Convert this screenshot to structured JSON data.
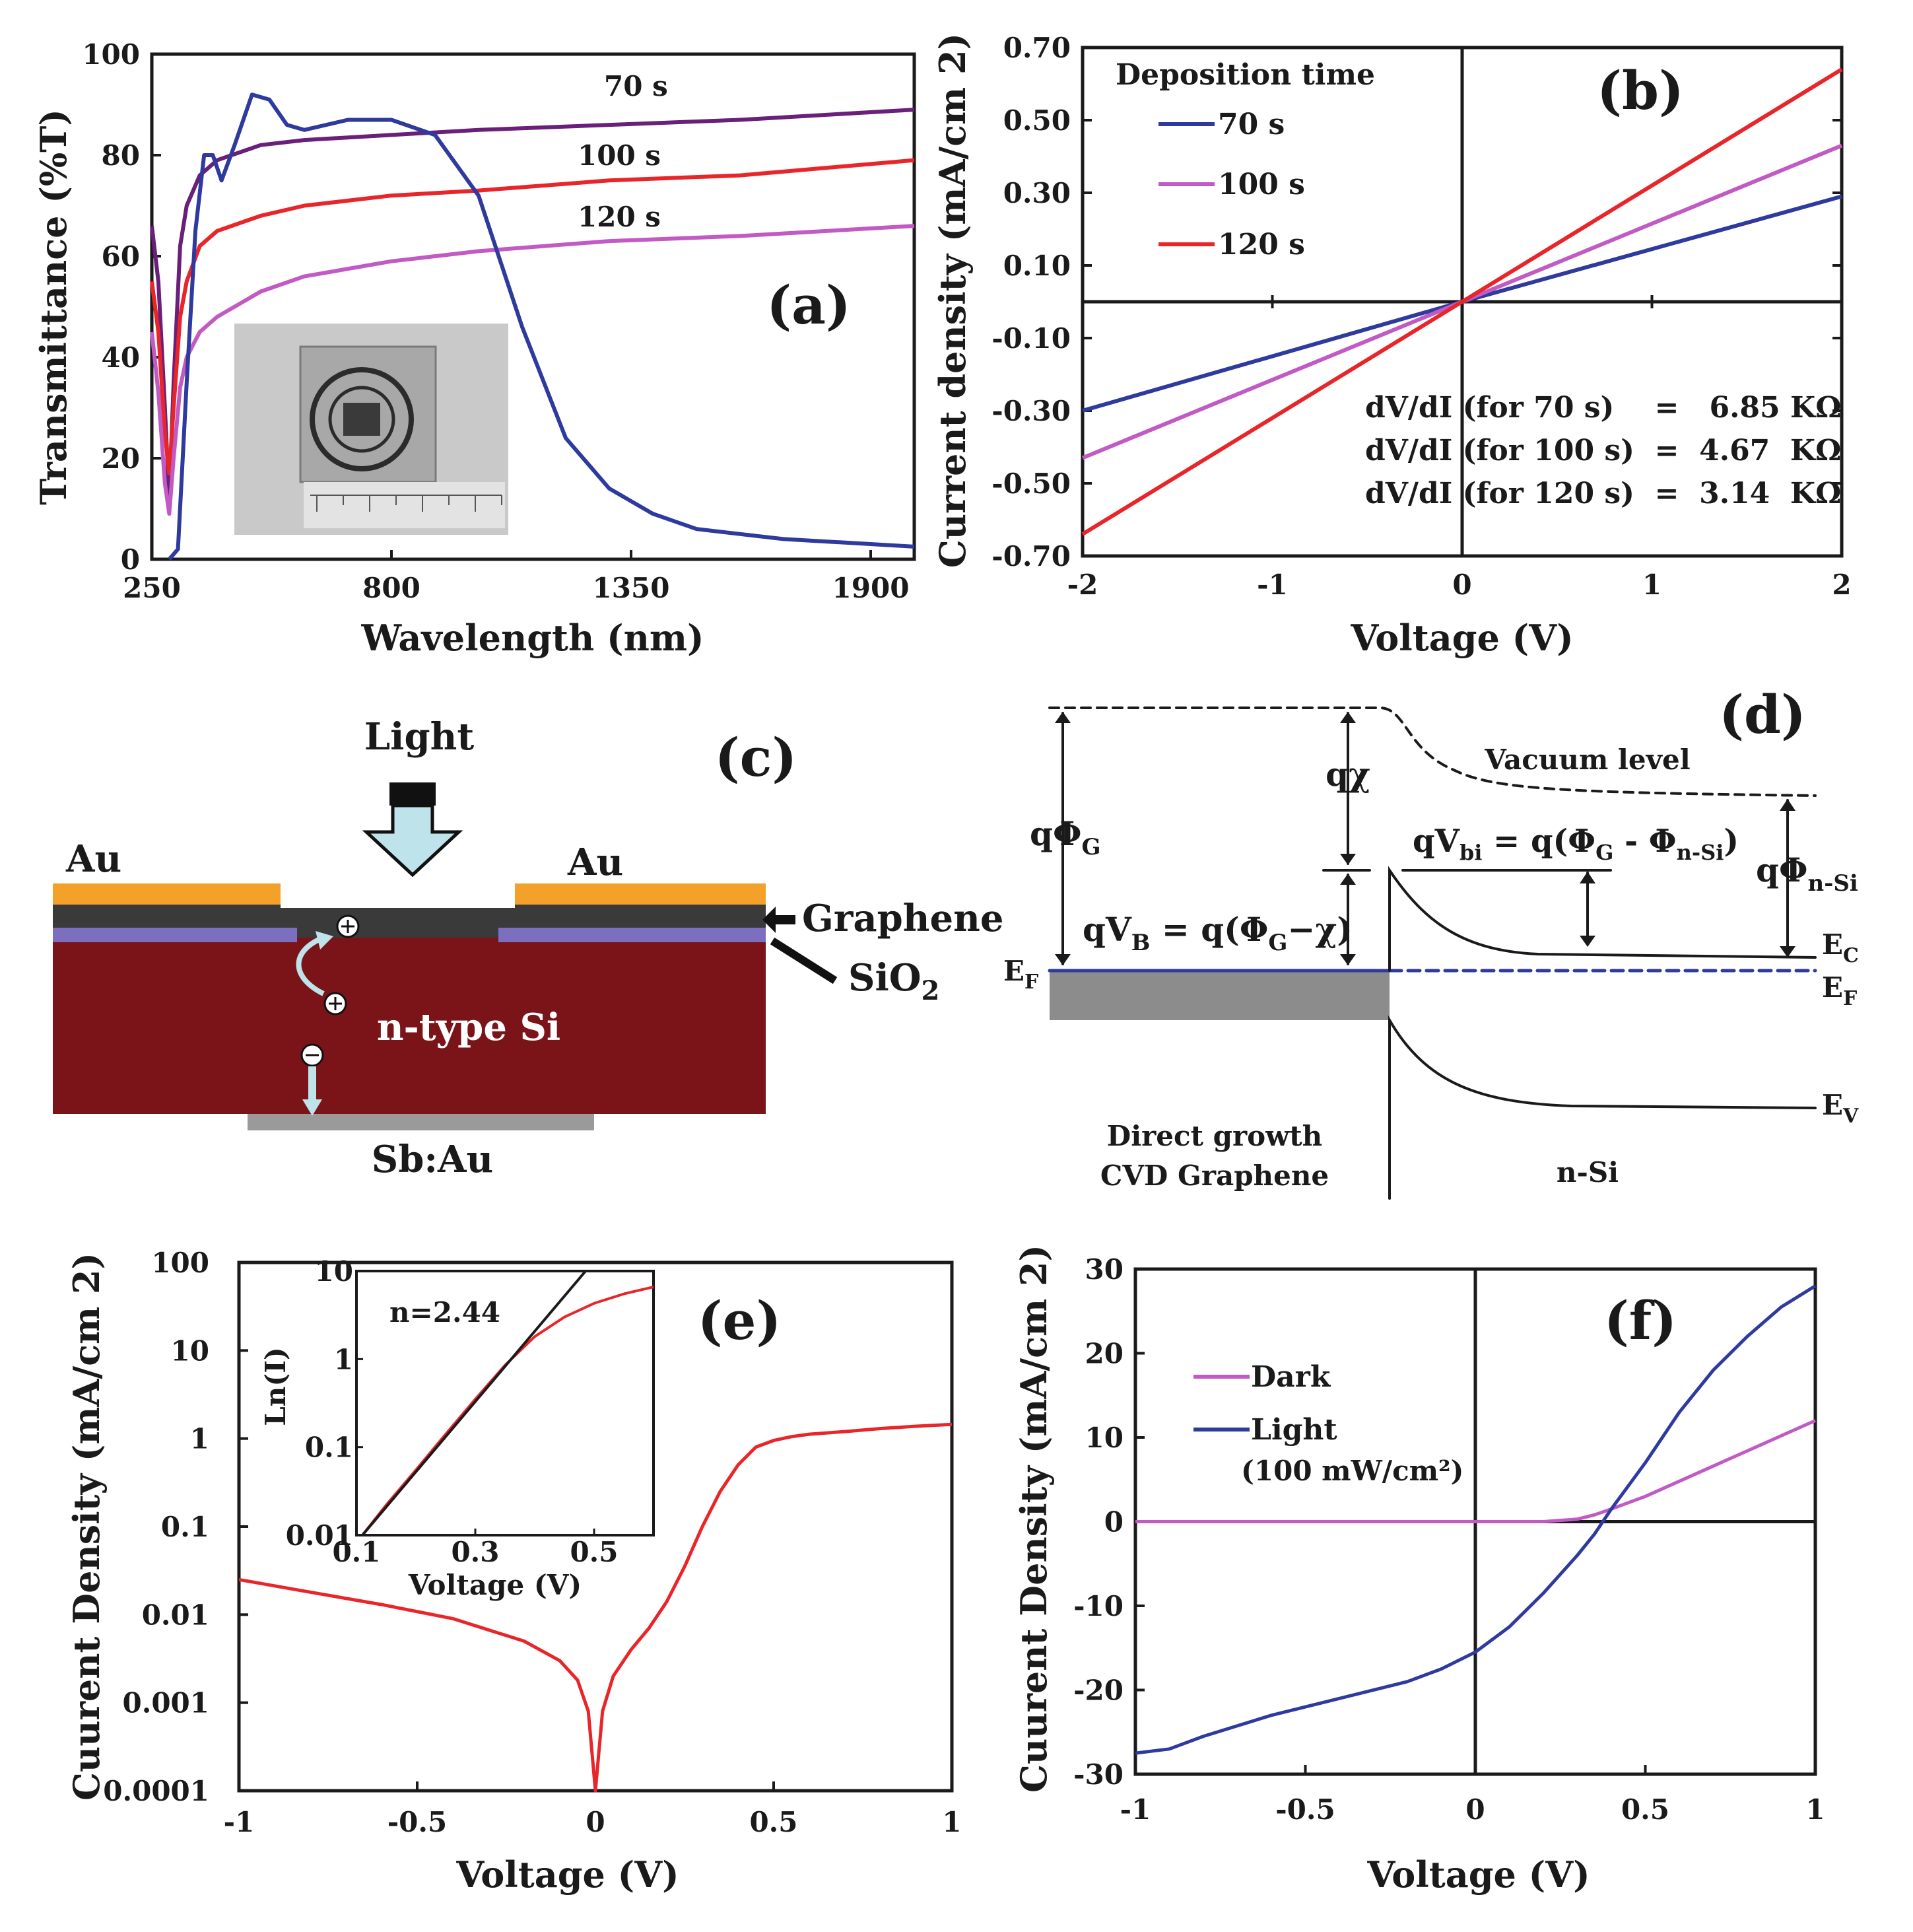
{
  "chart_data": [
    {
      "panel": "(a)",
      "type": "line",
      "xlabel": "Wavelength (nm)",
      "ylabel": "Transmittance (%T)",
      "xlim": [
        250,
        2000
      ],
      "ylim": [
        0,
        100
      ],
      "xticks": [
        250,
        800,
        1350,
        1900
      ],
      "yticks": [
        0,
        20,
        40,
        60,
        80,
        100
      ],
      "series": [
        {
          "name": "70 s",
          "color": "#6a1f7a",
          "x": [
            250,
            265,
            280,
            290,
            300,
            315,
            330,
            360,
            400,
            500,
            600,
            800,
            1000,
            1300,
            1600,
            2000
          ],
          "y": [
            66,
            55,
            30,
            12,
            35,
            62,
            70,
            76,
            79,
            82,
            83,
            84,
            85,
            86,
            87,
            89
          ]
        },
        {
          "name": "100 s",
          "color": "#e8262a",
          "x": [
            250,
            265,
            280,
            290,
            300,
            315,
            330,
            360,
            400,
            500,
            600,
            800,
            1000,
            1300,
            1600,
            2000
          ],
          "y": [
            55,
            45,
            25,
            17,
            30,
            48,
            55,
            62,
            65,
            68,
            70,
            72,
            73,
            75,
            76,
            79
          ]
        },
        {
          "name": "120 s",
          "color": "#c25ac4",
          "x": [
            250,
            265,
            280,
            290,
            300,
            315,
            330,
            360,
            400,
            500,
            600,
            800,
            1000,
            1300,
            1600,
            2000
          ],
          "y": [
            45,
            33,
            15,
            9,
            20,
            34,
            40,
            45,
            48,
            53,
            56,
            59,
            61,
            63,
            64,
            66
          ]
        },
        {
          "name": "",
          "color": "#2f3a9e",
          "x": [
            290,
            310,
            330,
            350,
            370,
            390,
            410,
            440,
            480,
            520,
            560,
            600,
            700,
            800,
            900,
            1000,
            1100,
            1200,
            1300,
            1400,
            1500,
            1600,
            1700,
            1800,
            1900,
            2000
          ],
          "y": [
            0,
            2,
            35,
            65,
            80,
            80,
            75,
            82,
            92,
            91,
            86,
            85,
            87,
            87,
            84,
            72,
            46,
            24,
            14,
            9,
            6,
            5,
            4,
            3.5,
            3,
            2.5
          ]
        }
      ],
      "annotations": [
        "70 s",
        "100 s",
        "120 s"
      ]
    },
    {
      "panel": "(b)",
      "type": "line",
      "xlabel": "Voltage (V)",
      "ylabel": "Current density (mA/cm 2)",
      "xlim": [
        -2,
        2
      ],
      "ylim": [
        -0.7,
        0.7
      ],
      "xticks": [
        -2,
        -1,
        0,
        1,
        2
      ],
      "yticks": [
        0.7,
        0.5,
        0.3,
        0.1,
        -0.1,
        -0.3,
        -0.5,
        -0.7
      ],
      "xtick_labels": [
        "-2",
        "-1",
        "0",
        "1",
        "2"
      ],
      "ytick_labels": [
        "0.70",
        "0.50",
        "0.30",
        "0.10",
        "-0.10",
        "-0.30",
        "-0.50",
        "-0.70"
      ],
      "legend_title": "Deposition time",
      "series": [
        {
          "name": "70 s",
          "color": "#2f3a9e",
          "x": [
            -2,
            0,
            2
          ],
          "y": [
            -0.3,
            0,
            0.29
          ]
        },
        {
          "name": "100 s",
          "color": "#c25ac4",
          "x": [
            -2,
            0,
            2
          ],
          "y": [
            -0.43,
            0,
            0.43
          ]
        },
        {
          "name": "120 s",
          "color": "#e8262a",
          "x": [
            -2,
            0,
            2
          ],
          "y": [
            -0.64,
            0,
            0.64
          ]
        }
      ],
      "annotations": [
        "dV/dI (for 70 s)    =   6.85 KΩ",
        "dV/dI (for 100 s)  =  4.67  KΩ",
        "dV/dI (for 120 s)  =  3.14  KΩ"
      ]
    },
    {
      "panel": "(e)",
      "type": "line",
      "xlabel": "Voltage (V)",
      "ylabel": "Cuurent Density (mA/cm 2)",
      "xlim": [
        -1,
        1
      ],
      "ylim": [
        0.0001,
        100
      ],
      "yscale": "log",
      "xticks": [
        -1,
        -0.5,
        0,
        0.5,
        1
      ],
      "xtick_labels": [
        "-1",
        "-0.5",
        "0",
        "0.5",
        "1"
      ],
      "yticks": [
        100,
        10,
        1,
        0.1,
        0.01,
        0.001,
        0.0001
      ],
      "ytick_labels": [
        "100",
        "10",
        "1",
        "0.1",
        "0.01",
        "0.001",
        "0.0001"
      ],
      "series": [
        {
          "name": "",
          "color": "#e8262a",
          "x": [
            -1,
            -0.8,
            -0.6,
            -0.4,
            -0.2,
            -0.1,
            -0.05,
            -0.02,
            0,
            0.02,
            0.05,
            0.1,
            0.15,
            0.2,
            0.25,
            0.3,
            0.35,
            0.4,
            0.45,
            0.5,
            0.55,
            0.6,
            0.7,
            0.8,
            0.9,
            1.0
          ],
          "y": [
            0.025,
            0.018,
            0.013,
            0.009,
            0.005,
            0.003,
            0.0018,
            0.0008,
            0.0001,
            0.0008,
            0.002,
            0.004,
            0.007,
            0.014,
            0.035,
            0.1,
            0.25,
            0.5,
            0.8,
            0.95,
            1.05,
            1.12,
            1.2,
            1.3,
            1.38,
            1.45
          ]
        }
      ],
      "inset": {
        "type": "line",
        "xlabel": "Voltage (V)",
        "ylabel": "Ln(I)",
        "xlim": [
          0.1,
          0.6
        ],
        "ylim": [
          0.01,
          10
        ],
        "yscale": "log",
        "xticks": [
          0.1,
          0.3,
          0.5
        ],
        "xtick_labels": [
          "0.1",
          "0.3",
          "0.5"
        ],
        "yticks": [
          10,
          1,
          0.1,
          0.01
        ],
        "ytick_labels": [
          "10",
          "1",
          "0.1",
          "0.01"
        ],
        "annotation": "n=2.44",
        "series": [
          {
            "name": "",
            "color": "#e8262a",
            "x": [
              0.11,
              0.15,
              0.2,
              0.25,
              0.3,
              0.35,
              0.4,
              0.45,
              0.5,
              0.55,
              0.6
            ],
            "y": [
              0.01,
              0.022,
              0.055,
              0.14,
              0.35,
              0.85,
              1.8,
              3.0,
              4.3,
              5.5,
              6.6
            ]
          },
          {
            "name": "",
            "color": "#1a1a1a",
            "x": [
              0.11,
              0.5
            ],
            "y": [
              0.01,
              13
            ]
          }
        ]
      }
    },
    {
      "panel": "(f)",
      "type": "line",
      "xlabel": "Voltage (V)",
      "ylabel": "Cuurent Density (mA/cm 2)",
      "xlim": [
        -1,
        1
      ],
      "ylim": [
        -30,
        30
      ],
      "xticks": [
        -1,
        -0.5,
        0,
        0.5,
        1
      ],
      "xtick_labels": [
        "-1",
        "-0.5",
        "0",
        "0.5",
        "1"
      ],
      "yticks": [
        30,
        20,
        10,
        0,
        -10,
        -20,
        -30
      ],
      "ytick_labels": [
        "30",
        "20",
        "10",
        "0",
        "-10",
        "-20",
        "-30"
      ],
      "legend_note": "(100 mW/cm²)",
      "series": [
        {
          "name": "Dark",
          "color": "#c25ac4",
          "x": [
            -1,
            -0.5,
            0,
            0.2,
            0.3,
            0.35,
            0.4,
            0.5,
            0.6,
            0.7,
            0.8,
            0.9,
            1.0
          ],
          "y": [
            0,
            0,
            0,
            0,
            0.3,
            0.8,
            1.5,
            3.0,
            4.8,
            6.6,
            8.4,
            10.2,
            12.0
          ]
        },
        {
          "name": "Light",
          "color": "#2f3a9e",
          "x": [
            -1,
            -0.9,
            -0.8,
            -0.6,
            -0.4,
            -0.2,
            -0.1,
            0,
            0.1,
            0.2,
            0.3,
            0.35,
            0.4,
            0.5,
            0.6,
            0.7,
            0.8,
            0.9,
            1.0
          ],
          "y": [
            -27.5,
            -27,
            -25.5,
            -23,
            -21,
            -19,
            -17.5,
            -15.5,
            -12.5,
            -8.5,
            -4,
            -1.5,
            1.5,
            7,
            13,
            18,
            22,
            25.5,
            28
          ]
        }
      ]
    }
  ],
  "panel_c": {
    "label": "(c)",
    "light": "Light",
    "au_left": "Au",
    "au_right": "Au",
    "graphene": "Graphene",
    "sio2_main": "SiO",
    "sio2_sub": "2",
    "silicon": "n-type Si",
    "back_contact": "Sb:Au",
    "colors": {
      "au": "#f4a129",
      "graphene": "#3a3a3a",
      "sio2": "#7c6fc0",
      "silicon": "#7a1418",
      "contact": "#9a9a9a",
      "arrow": "#bfe3ea"
    }
  },
  "panel_d": {
    "label": "(d)",
    "vacuum_level": "Vacuum level",
    "q_phi_g": "qΦ",
    "q_phi_g_sub": "G",
    "q_chi": "qχ",
    "q_vbi": "qV",
    "q_vbi_sub": "bi",
    "q_vbi_eq": " = q(Φ",
    "q_vbi_eq_sub1": "G",
    "q_vbi_eq2": " - Φ",
    "q_vbi_eq_sub2": "n-Si",
    "q_vbi_eq3": ")",
    "q_vb": "qV",
    "q_vb_sub": "B",
    "q_vb_eq": " = q(Φ",
    "q_vb_eq_sub": "G",
    "q_vb_eq2": "−χ)",
    "q_phi_nsi": "qΦ",
    "q_phi_nsi_sub": "n-Si",
    "ef_left": "E",
    "ef_left_sub": "F",
    "ec": "E",
    "ec_sub": "C",
    "ef_right": "E",
    "ef_right_sub": "F",
    "ev": "E",
    "ev_sub": "V",
    "left_region_line1": "Direct growth",
    "left_region_line2": "CVD Graphene",
    "right_region": "n-Si"
  },
  "legend_b_title": "Deposition time",
  "legend_f_note": "(100 mW/cm²)"
}
